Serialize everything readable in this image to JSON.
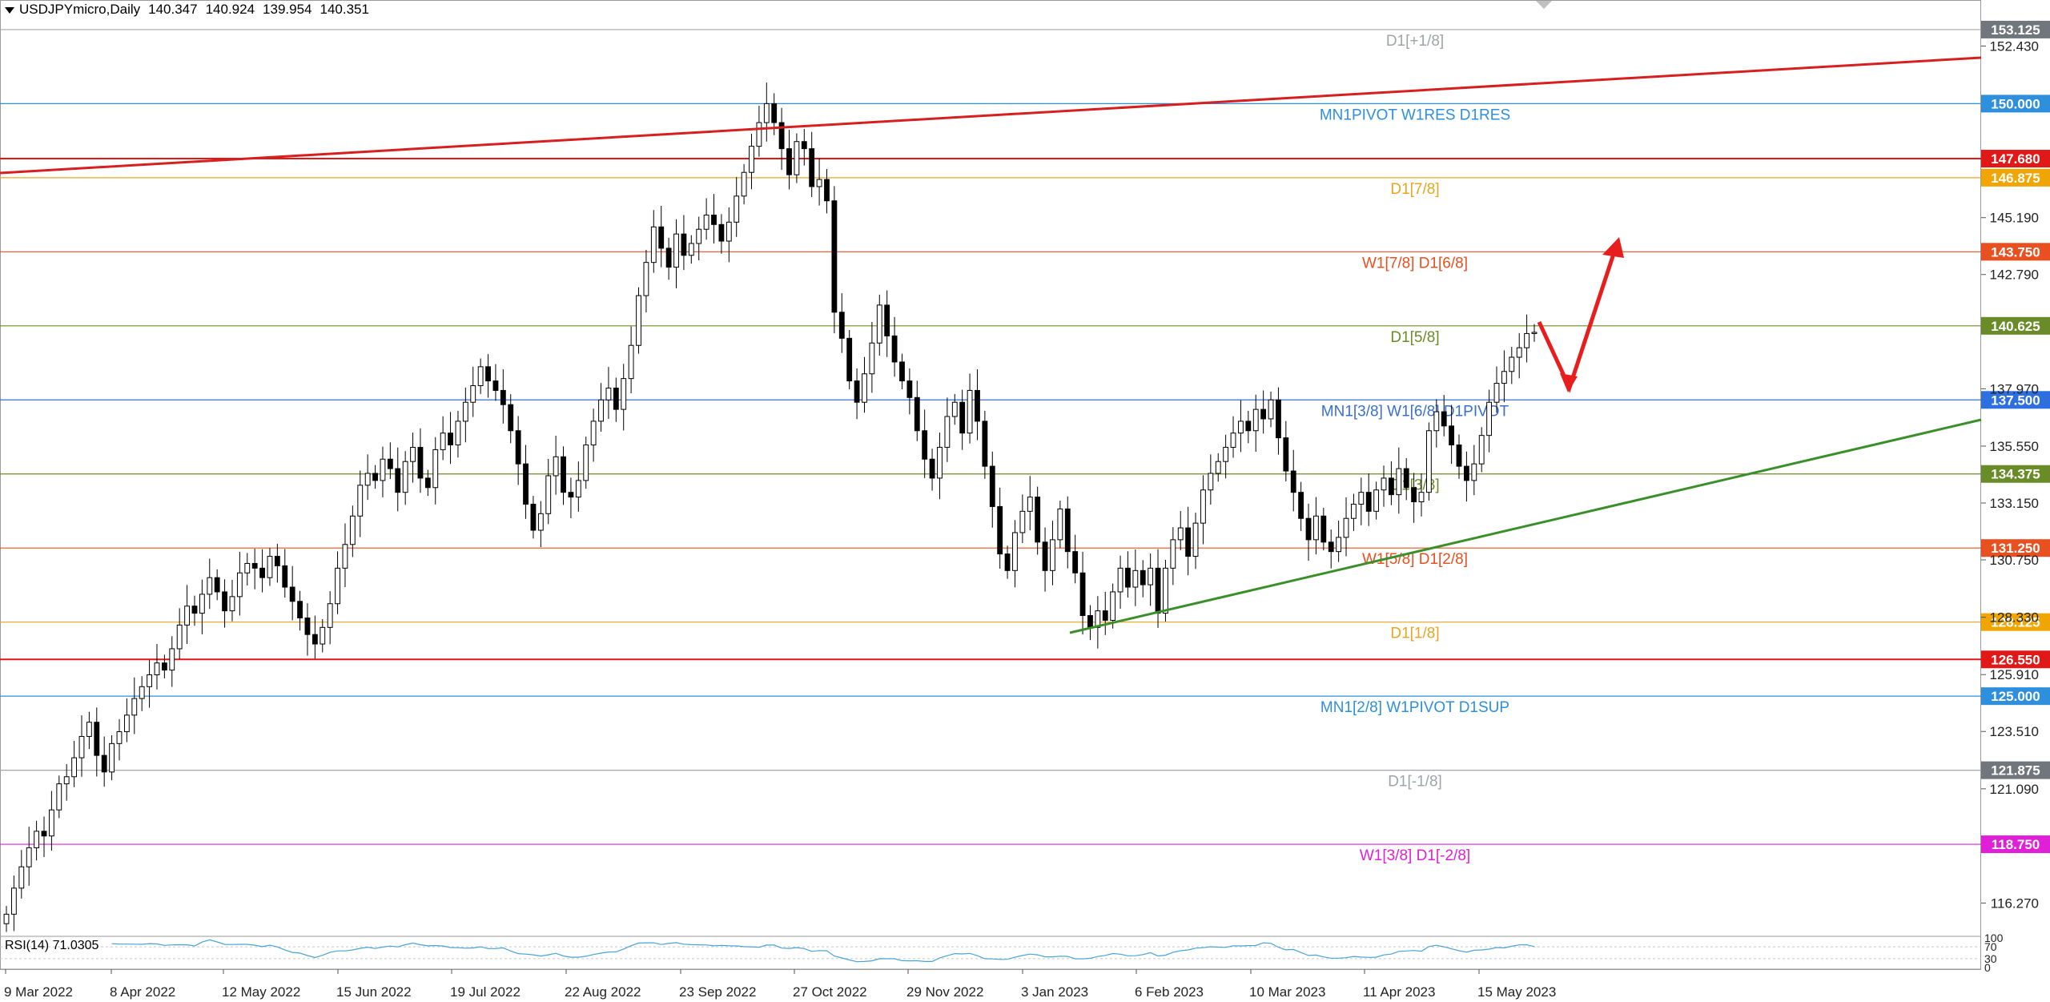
{
  "header": {
    "symbol_timeframe": "USDJPYmicro,Daily",
    "open": "140.347",
    "high": "140.924",
    "low": "139.954",
    "close": "140.351"
  },
  "rsi": {
    "label": "RSI(14) 71.0305",
    "axis_labels": [
      "100",
      "70",
      "30",
      "0"
    ],
    "line_color": "#4aa3d6"
  },
  "colors": {
    "up_candle": "#ffffff",
    "down_candle": "#000000",
    "red_trendline": "#d62020",
    "green_trendline": "#3a8f2a",
    "arrow": "#e81e1e"
  },
  "chart_data": {
    "type": "candlestick",
    "title": "USDJPYmicro,Daily",
    "ylim": [
      114.9,
      153.9
    ],
    "y_ticks": [
      "152.430",
      "145.190",
      "142.790",
      "137.970",
      "135.550",
      "133.150",
      "130.750",
      "128.330",
      "125.910",
      "123.510",
      "121.090",
      "116.270"
    ],
    "x_ticks": [
      "9 Mar 2022",
      "8 Apr 2022",
      "12 May 2022",
      "15 Jun 2022",
      "19 Jul 2022",
      "22 Aug 2022",
      "23 Sep 2022",
      "27 Oct 2022",
      "29 Nov 2022",
      "3 Jan 2023",
      "6 Feb 2023",
      "10 Mar 2023",
      "11 Apr 2023",
      "15 May 2023"
    ],
    "close_series": [
      115.8,
      116.9,
      117.8,
      118.6,
      119.3,
      119.1,
      120.2,
      121.3,
      121.6,
      122.4,
      123.3,
      123.9,
      122.5,
      121.8,
      123.0,
      123.5,
      124.2,
      124.9,
      125.4,
      125.9,
      126.4,
      126.1,
      127.0,
      128.0,
      128.8,
      128.5,
      129.3,
      130.0,
      129.4,
      128.6,
      129.2,
      130.2,
      130.6,
      130.4,
      130.0,
      130.9,
      130.5,
      129.6,
      129.0,
      128.3,
      127.6,
      127.2,
      127.9,
      128.9,
      130.4,
      131.4,
      132.6,
      133.9,
      134.4,
      134.1,
      135.0,
      134.6,
      133.6,
      134.9,
      135.5,
      134.2,
      133.8,
      135.4,
      136.1,
      135.6,
      136.6,
      137.4,
      138.1,
      138.9,
      138.3,
      137.9,
      137.3,
      136.2,
      134.8,
      133.1,
      132.0,
      132.7,
      134.3,
      135.1,
      133.6,
      133.4,
      134.1,
      135.6,
      136.6,
      137.5,
      138.0,
      137.1,
      138.4,
      139.8,
      141.9,
      143.3,
      144.8,
      143.9,
      143.1,
      144.5,
      143.6,
      144.1,
      144.7,
      145.3,
      144.9,
      144.2,
      145.0,
      146.1,
      147.1,
      148.2,
      149.2,
      150.0,
      149.2,
      148.1,
      147.0,
      148.4,
      148.1,
      146.5,
      146.8,
      145.9,
      141.2,
      140.1,
      138.3,
      137.4,
      138.6,
      139.9,
      141.5,
      140.2,
      139.1,
      138.3,
      137.6,
      136.2,
      135.0,
      134.2,
      135.5,
      136.8,
      137.4,
      136.1,
      137.9,
      136.6,
      134.7,
      133.0,
      131.0,
      130.3,
      131.9,
      132.8,
      133.4,
      131.5,
      130.3,
      131.6,
      132.9,
      131.1,
      130.2,
      128.4,
      127.9,
      128.6,
      128.2,
      129.4,
      130.4,
      129.6,
      130.3,
      129.7,
      130.4,
      128.5,
      130.4,
      131.6,
      132.1,
      130.9,
      132.3,
      133.7,
      134.4,
      134.9,
      135.5,
      136.1,
      136.6,
      136.2,
      137.1,
      136.7,
      137.5,
      135.9,
      134.5,
      133.6,
      132.5,
      131.6,
      132.6,
      131.5,
      131.1,
      131.7,
      132.5,
      133.1,
      133.6,
      132.8,
      133.7,
      134.2,
      133.5,
      134.6,
      133.8,
      133.2,
      133.6,
      136.2,
      137.0,
      136.4,
      135.6,
      134.7,
      134.1,
      134.8,
      136.0,
      137.4,
      138.2,
      138.7,
      139.3,
      139.7,
      140.3,
      140.35
    ],
    "horizontal_levels": [
      {
        "value": "153.125",
        "label": "D1[+1/8]",
        "color": "#a0a4a8",
        "tag_bg": "#70767c"
      },
      {
        "value": "150.000",
        "label": "MN1PIVOT W1RES D1RES",
        "color": "#2e8fdc",
        "tag_bg": "#2e8fdc"
      },
      {
        "value": "147.680",
        "label": "",
        "color": "#e01818",
        "tag_bg": "#e01818"
      },
      {
        "value": "146.875",
        "label": "D1[7/8]",
        "color": "#e8a520",
        "tag_bg": "#f0a500"
      },
      {
        "value": "143.750",
        "label": "W1[7/8] D1[6/8]",
        "color": "#e85020",
        "tag_bg": "#e85020"
      },
      {
        "value": "140.625",
        "label": "D1[5/8]",
        "color": "#6a8c28",
        "tag_bg": "#6a8c28"
      },
      {
        "value": "137.500",
        "label": "MN1[3/8] W1[6/8] D1PIVOT",
        "color": "#3a6fd0",
        "tag_bg": "#2e6fe0"
      },
      {
        "value": "134.375",
        "label": "D1[3/8]",
        "color": "#6a8c28",
        "tag_bg": "#6a8c28"
      },
      {
        "value": "131.250",
        "label": "W1[5/8] D1[2/8]",
        "color": "#e85020",
        "tag_bg": "#e85020"
      },
      {
        "value": "128.125",
        "label": "D1[1/8]",
        "color": "#e8a520",
        "tag_bg": "#f0a500"
      },
      {
        "value": "126.550",
        "label": "",
        "color": "#e01818",
        "tag_bg": "#e01818"
      },
      {
        "value": "125.000",
        "label": "MN1[2/8] W1PIVOT D1SUP",
        "color": "#2e8fdc",
        "tag_bg": "#2e8fdc"
      },
      {
        "value": "121.875",
        "label": "D1[-1/8]",
        "color": "#a0a4a8",
        "tag_bg": "#70767c"
      },
      {
        "value": "118.750",
        "label": "W1[3/8] D1[-2/8]",
        "color": "#e020d8",
        "tag_bg": "#e020d8"
      }
    ]
  }
}
